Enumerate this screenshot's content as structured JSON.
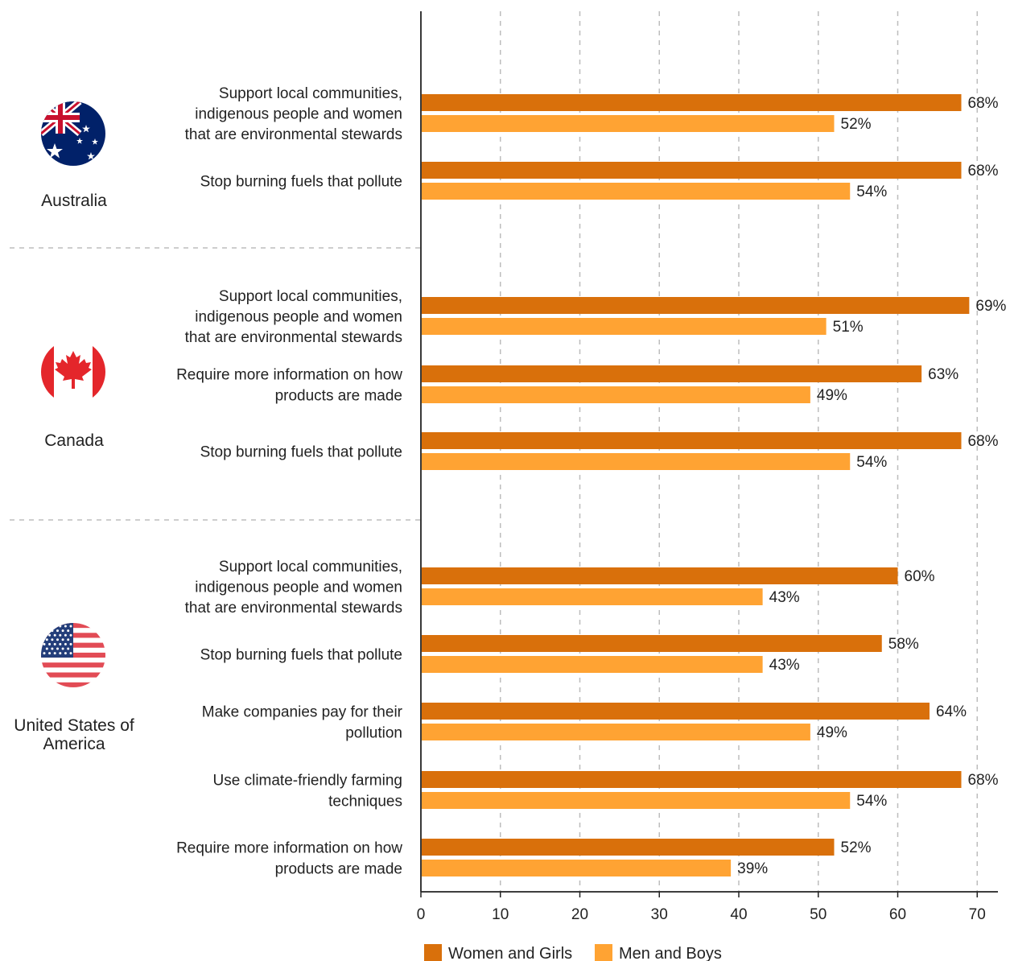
{
  "chart_data": {
    "type": "bar",
    "orientation": "horizontal",
    "xlim": [
      0,
      72
    ],
    "x_ticks": [
      0,
      10,
      20,
      30,
      40,
      50,
      60,
      70
    ],
    "grid": "vertical dashed",
    "legend_position": "bottom",
    "series": [
      {
        "name": "Women and Girls",
        "color": "#D9700B"
      },
      {
        "name": "Men and Boys",
        "color": "#FFA333"
      }
    ],
    "groups": [
      {
        "country": "Australia",
        "flag_icon": "australia-flag-icon",
        "items": [
          {
            "label": [
              "Support local communities,",
              "indigenous people and women",
              "that are environmental stewards"
            ],
            "values": [
              68,
              52
            ],
            "value_labels": [
              "68%",
              "52%"
            ]
          },
          {
            "label": [
              "Stop burning fuels that pollute"
            ],
            "values": [
              68,
              54
            ],
            "value_labels": [
              "68%",
              "54%"
            ]
          }
        ]
      },
      {
        "country": "Canada",
        "flag_icon": "canada-flag-icon",
        "items": [
          {
            "label": [
              "Support local communities,",
              "indigenous people and women",
              "that are environmental stewards"
            ],
            "values": [
              69,
              51
            ],
            "value_labels": [
              "69%",
              "51%"
            ]
          },
          {
            "label": [
              "Require more information on how",
              "products are made"
            ],
            "values": [
              63,
              49
            ],
            "value_labels": [
              "63%",
              "49%"
            ]
          },
          {
            "label": [
              "Stop burning fuels that pollute"
            ],
            "values": [
              68,
              54
            ],
            "value_labels": [
              "68%",
              "54%"
            ]
          }
        ]
      },
      {
        "country": "United States of America",
        "country_lines": [
          "United States of",
          "America"
        ],
        "flag_icon": "usa-flag-icon",
        "items": [
          {
            "label": [
              "Support local communities,",
              "indigenous people and women",
              "that are environmental stewards"
            ],
            "values": [
              60,
              43
            ],
            "value_labels": [
              "60%",
              "43%"
            ]
          },
          {
            "label": [
              "Stop burning fuels that pollute"
            ],
            "values": [
              58,
              43
            ],
            "value_labels": [
              "58%",
              "43%"
            ]
          },
          {
            "label": [
              "Make companies pay for their",
              "pollution"
            ],
            "values": [
              64,
              49
            ],
            "value_labels": [
              "64%",
              "49%"
            ]
          },
          {
            "label": [
              "Use climate-friendly farming",
              "techniques"
            ],
            "values": [
              68,
              54
            ],
            "value_labels": [
              "68%",
              "54%"
            ]
          },
          {
            "label": [
              "Require more information on how",
              "products are made"
            ],
            "values": [
              52,
              39
            ],
            "value_labels": [
              "52%",
              "39%"
            ]
          }
        ]
      }
    ]
  }
}
